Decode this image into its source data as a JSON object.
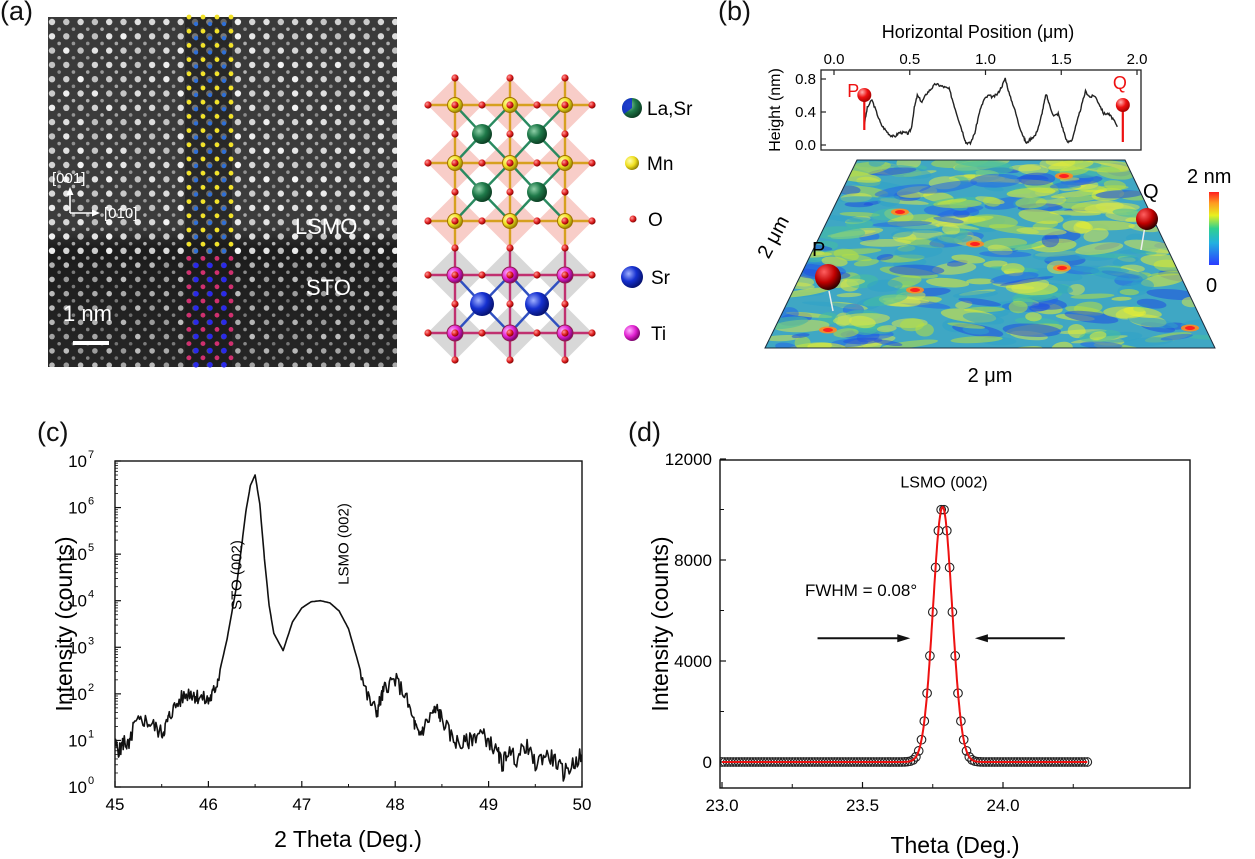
{
  "figure": {
    "panels": {
      "a": {
        "label": "(a)"
      },
      "b": {
        "label": "(b)"
      },
      "c": {
        "label": "(c)"
      },
      "d": {
        "label": "(d)"
      }
    }
  },
  "haadf_image": {
    "direction_vertical": "[001]",
    "direction_horizontal": "[010]",
    "layer_top": "LSMO",
    "layer_bottom": "STO",
    "scale_bar": "1 nm",
    "overlay_colors": {
      "mn": "#f2e22a",
      "la_sr": "#2f6fd6",
      "sr": "#2a2ae8",
      "ti": "#d0306f"
    }
  },
  "structure_legend": [
    {
      "label": "La,Sr",
      "color": "#1f7a4a",
      "icon": "la-sr-atom-icon"
    },
    {
      "label": "Mn",
      "color": "#f0e020",
      "icon": "mn-atom-icon"
    },
    {
      "label": "O",
      "color": "#e02020",
      "icon": "o-atom-icon"
    },
    {
      "label": "Sr",
      "color": "#1530d0",
      "icon": "sr-atom-icon"
    },
    {
      "label": "Ti",
      "color": "#e020d0",
      "icon": "ti-atom-icon"
    }
  ],
  "afm": {
    "colorbar_max": "2 nm",
    "colorbar_min": "0",
    "side_label": "2 μm",
    "bottom_label": "2 μm",
    "marker_p": "P",
    "marker_q": "Q"
  },
  "chart_data": [
    {
      "id": "height-profile",
      "type": "line",
      "title": "",
      "xlabel": "Horizontal Position (μm)",
      "ylabel": "Height (nm)",
      "xlim": [
        0.0,
        2.0
      ],
      "ylim": [
        -0.05,
        0.85
      ],
      "xticks": [
        "0.0",
        "0.5",
        "1.0",
        "1.5",
        "2.0"
      ],
      "xtick_values": [
        0.0,
        0.5,
        1.0,
        1.5,
        2.0
      ],
      "yticks": [
        "0.0",
        "0.4",
        "0.8"
      ],
      "ytick_values": [
        0.0,
        0.4,
        0.8
      ],
      "x_axis_position": "top",
      "annotations": [
        {
          "text": "P",
          "x": 0.2,
          "color": "#ee1111"
        },
        {
          "text": "Q",
          "x": 1.88,
          "color": "#ee1111"
        }
      ],
      "series": [
        {
          "name": "height",
          "x": [
            0.2,
            0.22,
            0.25,
            0.28,
            0.31,
            0.34,
            0.37,
            0.4,
            0.43,
            0.46,
            0.49,
            0.51,
            0.53,
            0.55,
            0.58,
            0.61,
            0.64,
            0.67,
            0.7,
            0.73,
            0.76,
            0.79,
            0.82,
            0.85,
            0.87,
            0.9,
            0.93,
            0.96,
            0.99,
            1.02,
            1.05,
            1.08,
            1.11,
            1.13,
            1.16,
            1.19,
            1.22,
            1.25,
            1.27,
            1.3,
            1.33,
            1.36,
            1.38,
            1.4,
            1.42,
            1.45,
            1.48,
            1.51,
            1.54,
            1.57,
            1.6,
            1.63,
            1.66,
            1.69,
            1.72,
            1.75,
            1.78,
            1.81,
            1.84,
            1.87
          ],
          "y": [
            0.25,
            0.45,
            0.55,
            0.4,
            0.25,
            0.18,
            0.12,
            0.1,
            0.15,
            0.15,
            0.14,
            0.2,
            0.45,
            0.6,
            0.52,
            0.62,
            0.68,
            0.74,
            0.72,
            0.7,
            0.68,
            0.5,
            0.32,
            0.15,
            0.03,
            0.02,
            0.15,
            0.4,
            0.55,
            0.6,
            0.58,
            0.62,
            0.72,
            0.81,
            0.6,
            0.45,
            0.25,
            0.1,
            0.02,
            0.08,
            0.12,
            0.28,
            0.45,
            0.62,
            0.5,
            0.35,
            0.38,
            0.2,
            0.03,
            0.06,
            0.25,
            0.45,
            0.65,
            0.58,
            0.6,
            0.5,
            0.38,
            0.38,
            0.32,
            0.22
          ]
        }
      ]
    },
    {
      "id": "xrd-2theta",
      "type": "line",
      "title": "",
      "xlabel": "2 Theta (Deg.)",
      "ylabel": "Intensity (counts)",
      "yscale": "log",
      "xlim": [
        45,
        50
      ],
      "ylim": [
        1,
        10000000
      ],
      "xticks": [
        "45",
        "46",
        "47",
        "48",
        "49",
        "50"
      ],
      "xtick_values": [
        45,
        46,
        47,
        48,
        49,
        50
      ],
      "yticks_base": "10",
      "yticks_exp": [
        "0",
        "1",
        "2",
        "3",
        "4",
        "5",
        "6",
        "7"
      ],
      "annotations": [
        {
          "text": "STO (002)",
          "x": 46.5,
          "orientation": "vertical"
        },
        {
          "text": "LSMO (002)",
          "x": 47.2,
          "orientation": "vertical"
        }
      ],
      "series": [
        {
          "name": "intensity",
          "x": [
            45.0,
            45.05,
            45.1,
            45.15,
            45.2,
            45.3,
            45.4,
            45.5,
            45.55,
            45.6,
            45.7,
            45.8,
            45.85,
            45.9,
            46.0,
            46.05,
            46.1,
            46.2,
            46.3,
            46.35,
            46.4,
            46.45,
            46.5,
            46.55,
            46.6,
            46.65,
            46.7,
            46.8,
            46.9,
            47.0,
            47.1,
            47.2,
            47.3,
            47.4,
            47.5,
            47.6,
            47.7,
            47.8,
            47.85,
            47.9,
            48.0,
            48.1,
            48.2,
            48.25,
            48.3,
            48.4,
            48.45,
            48.5,
            48.6,
            48.7,
            48.8,
            48.9,
            49.0,
            49.1,
            49.15,
            49.2,
            49.3,
            49.4,
            49.5,
            49.6,
            49.7,
            49.8,
            49.9,
            50.0
          ],
          "y": [
            8,
            6,
            10,
            7,
            20,
            28,
            22,
            14,
            22,
            40,
            75,
            110,
            95,
            85,
            70,
            100,
            200,
            1500,
            20000,
            120000,
            800000,
            3000000,
            5000000,
            1200000,
            80000,
            8000,
            2000,
            850,
            3500,
            7000,
            9500,
            10000,
            9000,
            6000,
            2500,
            500,
            90,
            40,
            80,
            150,
            200,
            100,
            25,
            12,
            18,
            40,
            45,
            30,
            12,
            8,
            10,
            15,
            10,
            5,
            3,
            6,
            4,
            8,
            3,
            5,
            4,
            2,
            3,
            5
          ]
        }
      ]
    },
    {
      "id": "rocking-curve",
      "type": "scatter",
      "title": "",
      "xlabel": "Theta (Deg.)",
      "ylabel": "Intensity (counts)",
      "xlim": [
        23.0,
        24.3
      ],
      "ylim": [
        -1000,
        12000
      ],
      "xticks": [
        "23.0",
        "23.5",
        "24.0"
      ],
      "xtick_values": [
        23.0,
        23.5,
        24.0
      ],
      "yticks": [
        "0",
        "4000",
        "8000",
        "12000"
      ],
      "ytick_values": [
        0,
        4000,
        8000,
        12000
      ],
      "annotations": [
        {
          "text": "LSMO (002)",
          "x": 23.79,
          "y": 11000
        },
        {
          "text": "FWHM = 0.08°",
          "x": 23.4,
          "y": 6800
        }
      ],
      "fwhm_arrows": {
        "y": 4900,
        "left_from": 23.34,
        "left_to": 23.67,
        "right_from": 24.22,
        "right_to": 23.9
      },
      "series": [
        {
          "name": "data",
          "style": "open-circle",
          "color": "#222222",
          "peak_center": 23.785,
          "peak_height": 10100,
          "fwhm": 0.08,
          "baseline": 0,
          "x_start": 23.0,
          "x_end": 24.3,
          "x_step": 0.01
        },
        {
          "name": "fit",
          "style": "line",
          "color": "#ee1111",
          "peak_center": 23.785,
          "peak_height": 10100,
          "fwhm": 0.08,
          "baseline": 0
        }
      ]
    }
  ]
}
